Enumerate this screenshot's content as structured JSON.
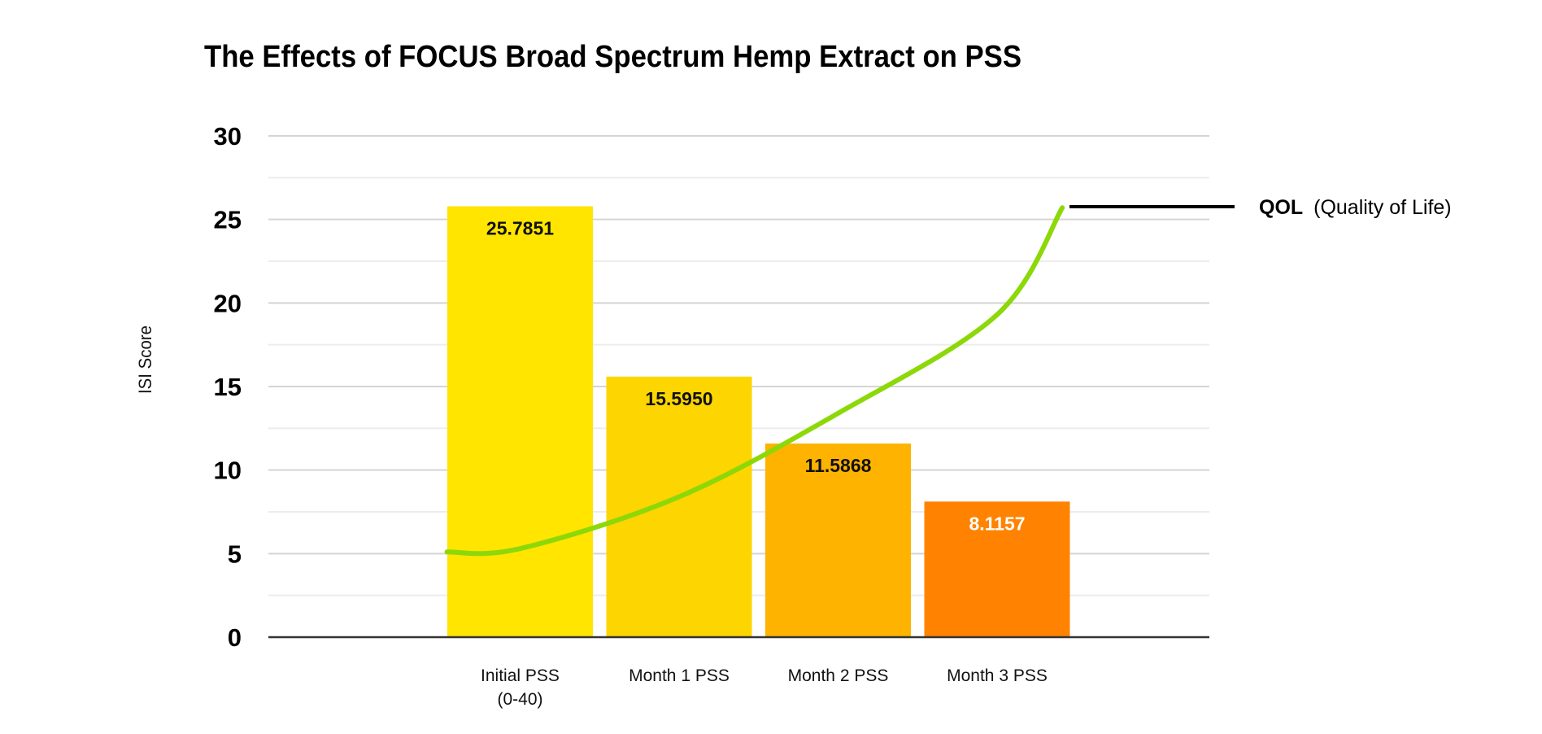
{
  "chart_data": {
    "type": "bar",
    "title": "The Effects of FOCUS Broad Spectrum Hemp Extract on PSS",
    "ylabel": "ISI Score",
    "xlabel": "",
    "ylim": [
      0,
      30
    ],
    "yticks": [
      "0",
      "5",
      "10",
      "15",
      "20",
      "25",
      "30"
    ],
    "grid": true,
    "categories": [
      "Initial PSS\n(0-40)",
      "Month 1 PSS",
      "Month 2 PSS",
      "Month 3 PSS"
    ],
    "values": [
      25.7851,
      15.595,
      11.5868,
      8.1157
    ],
    "data_labels": [
      "25.7851",
      "15.5950",
      "11.5868",
      "8.1157"
    ],
    "bar_colors": [
      "#FFE500",
      "#FDD500",
      "#FDB300",
      "#FF8300"
    ],
    "label_colors": [
      "#111111",
      "#111111",
      "#111111",
      "#FFFFFF"
    ],
    "curve": {
      "color": "#8CD808",
      "points": [
        [
          -0.46,
          5.1
        ],
        [
          0,
          5.3
        ],
        [
          1,
          8.4
        ],
        [
          2,
          13.4
        ],
        [
          3,
          19.3
        ],
        [
          3.41,
          25.7
        ]
      ],
      "annotation_bold": "QOL",
      "annotation_rest": "(Quality of Life)"
    }
  }
}
